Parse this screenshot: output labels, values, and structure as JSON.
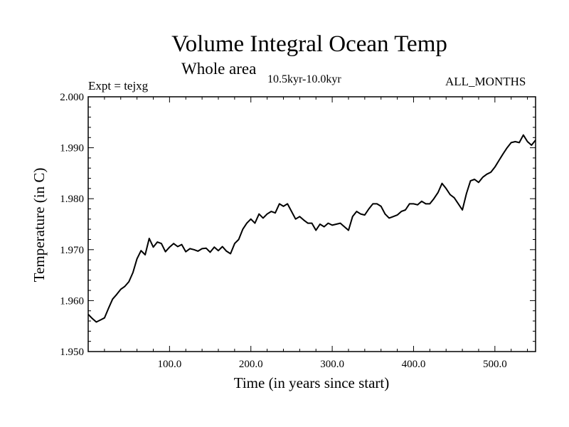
{
  "header": {
    "title": "Volume Integral Ocean Temp",
    "subtitle": "Whole area",
    "time_range": "10.5kyr-10.0kyr",
    "experiment": "Expt = tejxg",
    "months": "ALL_MONTHS"
  },
  "chart_data": {
    "type": "line",
    "title": "Volume Integral Ocean Temp",
    "subtitle": "Whole area",
    "xlabel": "Time (in years since start)",
    "ylabel": "Temperature (in C)",
    "xlim": [
      0,
      550
    ],
    "ylim": [
      1.95,
      2.0
    ],
    "grid": false,
    "x_ticks": [
      100,
      200,
      300,
      400,
      500
    ],
    "x_tick_labels": [
      "100.0",
      "200.0",
      "300.0",
      "400.0",
      "500.0"
    ],
    "y_ticks": [
      1.95,
      1.96,
      1.97,
      1.98,
      1.99,
      2.0
    ],
    "y_tick_labels": [
      "1.950",
      "1.960",
      "1.970",
      "1.980",
      "1.990",
      "2.000"
    ],
    "series": [
      {
        "name": "Volume integral ocean temperature",
        "x": [
          0,
          5,
          10,
          15,
          20,
          25,
          30,
          35,
          40,
          45,
          50,
          55,
          60,
          65,
          70,
          75,
          80,
          85,
          90,
          95,
          100,
          105,
          110,
          115,
          120,
          125,
          130,
          135,
          140,
          145,
          150,
          155,
          160,
          165,
          170,
          175,
          180,
          185,
          190,
          195,
          200,
          205,
          210,
          215,
          220,
          225,
          230,
          235,
          240,
          245,
          250,
          255,
          260,
          265,
          270,
          275,
          280,
          285,
          290,
          295,
          300,
          305,
          310,
          315,
          320,
          325,
          330,
          335,
          340,
          345,
          350,
          355,
          360,
          365,
          370,
          375,
          380,
          385,
          390,
          395,
          400,
          405,
          410,
          415,
          420,
          425,
          430,
          435,
          440,
          445,
          450,
          455,
          460,
          465,
          470,
          475,
          480,
          485,
          490,
          495,
          500,
          505,
          510,
          515,
          520,
          525,
          530,
          535,
          540,
          545,
          550
        ],
        "values": [
          1.9573,
          1.9565,
          1.9558,
          1.9562,
          1.9566,
          1.9585,
          1.9603,
          1.9612,
          1.9622,
          1.9628,
          1.9637,
          1.9655,
          1.9682,
          1.9698,
          1.969,
          1.9722,
          1.9705,
          1.9715,
          1.9712,
          1.9696,
          1.9705,
          1.9712,
          1.9706,
          1.971,
          1.9696,
          1.9702,
          1.97,
          1.9697,
          1.9702,
          1.9703,
          1.9695,
          1.9705,
          1.9698,
          1.9706,
          1.9697,
          1.9692,
          1.9712,
          1.972,
          1.974,
          1.9752,
          1.976,
          1.9752,
          1.977,
          1.9762,
          1.977,
          1.9775,
          1.9772,
          1.979,
          1.9785,
          1.979,
          1.9775,
          1.976,
          1.9765,
          1.9758,
          1.9752,
          1.9752,
          1.9738,
          1.975,
          1.9745,
          1.9752,
          1.9748,
          1.975,
          1.9752,
          1.9745,
          1.9738,
          1.9765,
          1.9775,
          1.977,
          1.9768,
          1.978,
          1.979,
          1.979,
          1.9785,
          1.977,
          1.9762,
          1.9765,
          1.9768,
          1.9775,
          1.9778,
          1.979,
          1.979,
          1.9788,
          1.9795,
          1.979,
          1.979,
          1.98,
          1.9812,
          1.983,
          1.982,
          1.9808,
          1.9802,
          1.979,
          1.9778,
          1.981,
          1.9835,
          1.9838,
          1.9832,
          1.9842,
          1.9848,
          1.9852,
          1.9862,
          1.9875,
          1.9888,
          1.99,
          1.991,
          1.9912,
          1.991,
          1.9925,
          1.9912,
          1.9905,
          1.9915
        ]
      }
    ]
  }
}
